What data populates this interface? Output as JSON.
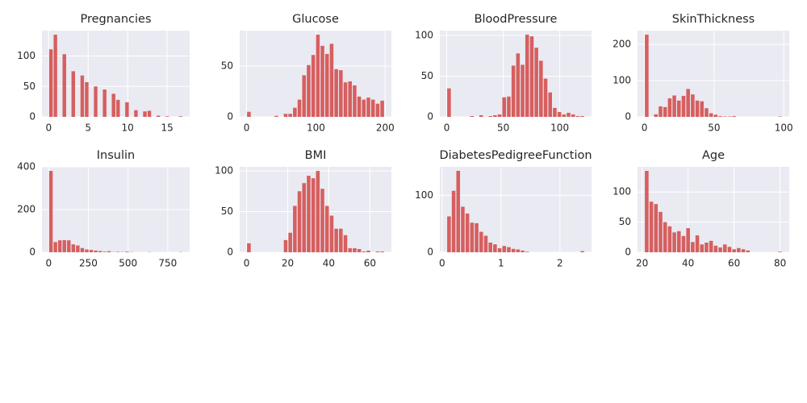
{
  "chart_data": [
    {
      "type": "histogram",
      "title": "Pregnancies",
      "color": "#d65f5f",
      "grid": true,
      "bins": [
        0,
        0.57,
        1.13,
        1.7,
        2.27,
        2.83,
        3.4,
        3.97,
        4.53,
        5.1,
        5.67,
        6.23,
        6.8,
        7.37,
        7.93,
        8.5,
        9.07,
        9.63,
        10.2,
        10.77,
        11.33,
        11.9,
        12.47,
        13.03,
        13.6,
        14.17,
        14.73,
        15.3,
        15.87,
        16.43,
        17
      ],
      "values": [
        111,
        135,
        0,
        103,
        0,
        75,
        0,
        68,
        57,
        0,
        50,
        0,
        45,
        0,
        38,
        28,
        0,
        24,
        0,
        11,
        0,
        9,
        10,
        0,
        2,
        0,
        1,
        0,
        0,
        1
      ],
      "xlim": [
        -0.85,
        17.85
      ],
      "xticks": [
        0,
        5,
        10,
        15
      ],
      "ylim": [
        0,
        141.75
      ],
      "yticks": [
        0,
        50,
        100
      ]
    },
    {
      "type": "histogram",
      "title": "Glucose",
      "color": "#d65f5f",
      "grid": true,
      "bins": [
        0,
        6.63,
        13.27,
        19.9,
        26.53,
        33.17,
        39.8,
        46.43,
        53.07,
        59.7,
        66.33,
        72.97,
        79.6,
        86.23,
        92.87,
        99.5,
        106.13,
        112.77,
        119.4,
        126.03,
        132.67,
        139.3,
        145.93,
        152.57,
        159.2,
        165.83,
        172.47,
        179.1,
        185.73,
        192.37,
        199
      ],
      "values": [
        5,
        0,
        0,
        0,
        0,
        0,
        1,
        0,
        3,
        3,
        9,
        17,
        41,
        51,
        61,
        81,
        70,
        62,
        72,
        47,
        46,
        34,
        35,
        31,
        20,
        17,
        19,
        17,
        13,
        16
      ],
      "xlim": [
        -9.95,
        208.95
      ],
      "xticks": [
        0,
        100,
        200
      ],
      "ylim": [
        0,
        85
      ],
      "yticks": [
        0,
        50
      ]
    },
    {
      "type": "histogram",
      "title": "BloodPressure",
      "color": "#d65f5f",
      "grid": true,
      "bins": [
        0,
        4.07,
        8.13,
        12.2,
        16.27,
        20.33,
        24.4,
        28.47,
        32.53,
        36.6,
        40.67,
        44.73,
        48.8,
        52.87,
        56.93,
        61,
        65.07,
        69.13,
        73.2,
        77.27,
        81.33,
        85.4,
        89.47,
        93.53,
        97.6,
        101.67,
        105.73,
        109.8,
        113.87,
        117.93,
        122
      ],
      "values": [
        35,
        0,
        0,
        0,
        0,
        1,
        0,
        2,
        0,
        1,
        2,
        3,
        24,
        25,
        63,
        78,
        64,
        101,
        99,
        85,
        69,
        47,
        30,
        11,
        6,
        3,
        5,
        3,
        1,
        1
      ],
      "xlim": [
        -6.1,
        128.1
      ],
      "xticks": [
        0,
        50,
        100
      ],
      "ylim": [
        0,
        106
      ],
      "yticks": [
        0,
        50,
        100
      ]
    },
    {
      "type": "histogram",
      "title": "SkinThickness",
      "color": "#d65f5f",
      "grid": true,
      "bins": [
        0,
        3.3,
        6.6,
        9.9,
        13.2,
        16.5,
        19.8,
        23.1,
        26.4,
        29.7,
        33,
        36.3,
        39.6,
        42.9,
        46.2,
        49.5,
        52.8,
        56.1,
        59.4,
        62.7,
        66,
        69.3,
        72.6,
        75.9,
        79.2,
        82.5,
        85.8,
        89.1,
        92.4,
        95.7,
        99
      ],
      "values": [
        227,
        0,
        7,
        29,
        27,
        51,
        59,
        45,
        58,
        77,
        62,
        45,
        43,
        24,
        10,
        6,
        2,
        1,
        1,
        2,
        0,
        0,
        0,
        0,
        0,
        0,
        0,
        0,
        0,
        1
      ],
      "xlim": [
        -4.95,
        103.95
      ],
      "xticks": [
        0,
        50,
        100
      ],
      "ylim": [
        0,
        238
      ],
      "yticks": [
        0,
        100,
        200
      ]
    },
    {
      "type": "histogram",
      "title": "Insulin",
      "color": "#d65f5f",
      "grid": true,
      "bins": [
        0,
        28.2,
        56.4,
        84.6,
        112.8,
        141,
        169.2,
        197.4,
        225.6,
        253.8,
        282,
        310.2,
        338.4,
        366.6,
        394.8,
        423,
        451.2,
        479.4,
        507.6,
        535.8,
        564,
        592.2,
        620.4,
        648.6,
        676.8,
        705,
        733.2,
        761.4,
        789.6,
        817.8,
        846
      ],
      "values": [
        381,
        48,
        56,
        57,
        56,
        37,
        32,
        20,
        13,
        11,
        8,
        6,
        3,
        5,
        1,
        2,
        1,
        3,
        1,
        0,
        0,
        0,
        1,
        0,
        0,
        0,
        0,
        0,
        0,
        1
      ],
      "xlim": [
        -42.3,
        888.3
      ],
      "xticks": [
        0,
        250,
        500,
        750
      ],
      "ylim": [
        0,
        400
      ],
      "yticks": [
        0,
        200,
        400
      ]
    },
    {
      "type": "histogram",
      "title": "BMI",
      "color": "#d65f5f",
      "grid": true,
      "bins": [
        0,
        2.24,
        4.47,
        6.71,
        8.95,
        11.18,
        13.42,
        15.66,
        17.89,
        20.13,
        22.37,
        24.6,
        26.84,
        29.08,
        31.31,
        33.55,
        35.79,
        38.02,
        40.26,
        42.5,
        44.73,
        46.97,
        49.21,
        51.44,
        53.68,
        55.92,
        58.15,
        60.39,
        62.63,
        64.86,
        67.1
      ],
      "values": [
        11,
        0,
        0,
        0,
        0,
        0,
        0,
        0,
        15,
        24,
        57,
        75,
        85,
        94,
        91,
        100,
        78,
        57,
        45,
        29,
        29,
        21,
        5,
        5,
        4,
        1,
        2,
        0,
        1,
        1
      ],
      "xlim": [
        -3.36,
        70.46
      ],
      "xticks": [
        0,
        20,
        40,
        60
      ],
      "ylim": [
        0,
        105
      ],
      "yticks": [
        0,
        50,
        100
      ]
    },
    {
      "type": "histogram",
      "title": "DiabetesPedigreeFunction",
      "color": "#d65f5f",
      "grid": true,
      "bins": [
        0.078,
        0.156,
        0.234,
        0.312,
        0.39,
        0.468,
        0.546,
        0.625,
        0.703,
        0.781,
        0.859,
        0.937,
        1.015,
        1.093,
        1.171,
        1.249,
        1.327,
        1.405,
        1.483,
        1.561,
        1.64,
        1.718,
        1.796,
        1.874,
        1.952,
        2.03,
        2.108,
        2.186,
        2.264,
        2.342,
        2.42
      ],
      "values": [
        63,
        108,
        143,
        80,
        68,
        52,
        51,
        36,
        29,
        17,
        14,
        7,
        11,
        9,
        6,
        5,
        3,
        1,
        0,
        0,
        0,
        0,
        0,
        0,
        0,
        0,
        0,
        0,
        0,
        2
      ],
      "xlim": [
        -0.039,
        2.537
      ],
      "xticks": [
        0,
        1,
        2
      ],
      "ylim": [
        0,
        150
      ],
      "yticks": [
        0,
        100
      ]
    },
    {
      "type": "histogram",
      "title": "Age",
      "color": "#d65f5f",
      "grid": true,
      "bins": [
        21,
        23,
        25,
        27,
        29,
        31,
        33,
        35,
        37,
        39,
        41,
        43,
        45,
        47,
        49,
        51,
        53,
        55,
        57,
        59,
        61,
        63,
        65,
        67,
        69,
        71,
        73,
        75,
        77,
        79,
        81
      ],
      "values": [
        135,
        84,
        80,
        67,
        50,
        43,
        33,
        35,
        27,
        40,
        17,
        28,
        13,
        16,
        19,
        11,
        8,
        13,
        9,
        5,
        7,
        5,
        3,
        0,
        0,
        0,
        0,
        0,
        0,
        1
      ],
      "xlim": [
        18,
        84
      ],
      "xticks": [
        20,
        40,
        60,
        80
      ],
      "ylim": [
        0,
        141.75
      ],
      "yticks": [
        0,
        50,
        100
      ]
    }
  ]
}
